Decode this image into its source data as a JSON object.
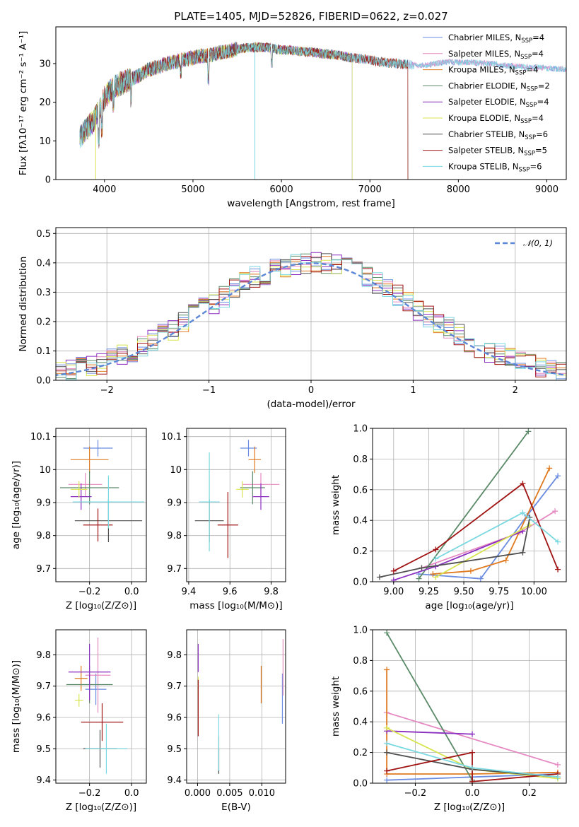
{
  "colors": [
    "#6b8ce0",
    "#e58ac2",
    "#e07a20",
    "#5a8a68",
    "#8b2fc0",
    "#d8e450",
    "#505050",
    "#a01414",
    "#7ad8e0"
  ],
  "chart_data": [
    {
      "id": "spectrum",
      "type": "line",
      "title": "PLATE=1405, MJD=52826, FIBERID=0622, z=0.027",
      "xlabel": "wavelength [Angstrom, rest frame]",
      "ylabel": "Flux [fλ10⁻¹⁷ erg cm⁻² s⁻¹ A⁻¹]",
      "xlim": [
        3450,
        9220
      ],
      "ylim": [
        0,
        39.5
      ],
      "xticks": [
        4000,
        5000,
        6000,
        7000,
        8000,
        9000
      ],
      "yticks": [
        0,
        10,
        20,
        30
      ],
      "grid": false,
      "legend": "top-right",
      "continuum": [
        [
          3720,
          11
        ],
        [
          3800,
          13
        ],
        [
          3900,
          16
        ],
        [
          4000,
          21
        ],
        [
          4100,
          24
        ],
        [
          4200,
          25
        ],
        [
          4300,
          26
        ],
        [
          4400,
          27
        ],
        [
          4500,
          28.5
        ],
        [
          4600,
          29
        ],
        [
          4700,
          30
        ],
        [
          4800,
          30.5
        ],
        [
          4900,
          31
        ],
        [
          5000,
          31.5
        ],
        [
          5100,
          32
        ],
        [
          5200,
          32.2
        ],
        [
          5300,
          32.8
        ],
        [
          5400,
          33.2
        ],
        [
          5500,
          33.8
        ],
        [
          5600,
          34
        ],
        [
          5700,
          34.2
        ],
        [
          5800,
          34.3
        ],
        [
          5900,
          34
        ],
        [
          6000,
          33.5
        ],
        [
          6100,
          33.5
        ],
        [
          6200,
          33.2
        ],
        [
          6300,
          33
        ],
        [
          6400,
          32.8
        ],
        [
          6500,
          32.5
        ],
        [
          6600,
          32.3
        ],
        [
          6700,
          32
        ],
        [
          6800,
          31.5
        ],
        [
          6900,
          31.2
        ],
        [
          7000,
          31
        ],
        [
          7100,
          30.5
        ],
        [
          7200,
          30.2
        ],
        [
          7300,
          30
        ],
        [
          7400,
          29.8
        ],
        [
          7500,
          29.6
        ],
        [
          7600,
          29.5
        ],
        [
          7700,
          29.8
        ],
        [
          7800,
          30.2
        ],
        [
          7900,
          30.4
        ],
        [
          8000,
          30.3
        ],
        [
          8100,
          30.4
        ],
        [
          8200,
          30.2
        ],
        [
          8300,
          30
        ],
        [
          8400,
          29.9
        ],
        [
          8500,
          29.5
        ],
        [
          8600,
          29.4
        ],
        [
          8700,
          29.2
        ],
        [
          8800,
          29
        ],
        [
          8900,
          29
        ],
        [
          9000,
          28.8
        ],
        [
          9100,
          28.6
        ],
        [
          9220,
          28.6
        ]
      ],
      "series": [
        {
          "name": "Chabrier MILES, N",
          "sub": "SSP",
          "suffix": "=4",
          "end": 9220
        },
        {
          "name": "Salpeter MILES, N",
          "sub": "SSP",
          "suffix": "=4",
          "end": 9220
        },
        {
          "name": "Kroupa MILES, N",
          "sub": "SSP",
          "suffix": "=4",
          "end": 7430
        },
        {
          "name": "Chabrier ELODIE, N",
          "sub": "SSP",
          "suffix": "=2",
          "end": 6800
        },
        {
          "name": "Salpeter ELODIE, N",
          "sub": "SSP",
          "suffix": "=4",
          "end": 6800
        },
        {
          "name": "Kroupa ELODIE, N",
          "sub": "SSP",
          "suffix": "=4",
          "end": 6800
        },
        {
          "name": "Chabrier STELIB, N",
          "sub": "SSP",
          "suffix": "=6",
          "end": 7430
        },
        {
          "name": "Salpeter STELIB, N",
          "sub": "SSP",
          "suffix": "=5",
          "end": 7430
        },
        {
          "name": "Kroupa STELIB, N",
          "sub": "SSP",
          "suffix": "=6",
          "end": 9220
        }
      ]
    },
    {
      "id": "residuals",
      "type": "histogram",
      "xlabel": "(data-model)/error",
      "ylabel": "Normed distribution",
      "xlim": [
        -2.5,
        2.5
      ],
      "ylim": [
        0,
        0.52
      ],
      "xticks": [
        -2,
        -1,
        0,
        1,
        2
      ],
      "xticklabels": [
        "−2",
        "−1",
        "0",
        "1",
        "2"
      ],
      "yticks": [
        0.0,
        0.1,
        0.2,
        0.3,
        0.4,
        0.5
      ],
      "yticklabels": [
        "0.0",
        "0.1",
        "0.2",
        "0.3",
        "0.4",
        "0.5"
      ],
      "grid": true,
      "legend": "top-right",
      "reference": {
        "name": "𝒩(0, 1)",
        "color": "#5b87d6"
      }
    },
    {
      "id": "age-vs-z",
      "type": "errorbar",
      "xlabel": "Z [log₁₀(Z/Z⊙)]",
      "ylabel": "age  [log₁₀(age/yr)]",
      "xlim": [
        -0.36,
        0.07
      ],
      "ylim": [
        9.66,
        10.125
      ],
      "xticks": [
        -0.2,
        0.0
      ],
      "xticklabels": [
        "−0.2",
        "0.0"
      ],
      "yticks": [
        9.7,
        9.8,
        9.9,
        10.0,
        10.1
      ],
      "grid": true,
      "points": [
        {
          "x": -0.16,
          "xerr": 0.07,
          "y": 10.065,
          "yerr": 0.025
        },
        {
          "x": -0.22,
          "xerr": 0.08,
          "y": 9.955,
          "yerr": 0.035
        },
        {
          "x": -0.2,
          "xerr": 0.09,
          "y": 10.03,
          "yerr": 0.04
        },
        {
          "x": -0.2,
          "xerr": 0.14,
          "y": 9.945,
          "yerr": 0.05
        },
        {
          "x": -0.24,
          "xerr": 0.05,
          "y": 9.918,
          "yerr": 0.04
        },
        {
          "x": -0.25,
          "xerr": 0.04,
          "y": 9.94,
          "yerr": 0.025
        },
        {
          "x": -0.11,
          "xerr": 0.16,
          "y": 9.845,
          "yerr": 0.065
        },
        {
          "x": -0.16,
          "xerr": 0.07,
          "y": 9.832,
          "yerr": 0.05
        },
        {
          "x": -0.11,
          "xerr": 0.17,
          "y": 9.902,
          "yerr": 0.08
        }
      ]
    },
    {
      "id": "age-vs-mass",
      "type": "errorbar",
      "xlabel": "mass [log₁₀(M/M⊙)]",
      "ylabel": "",
      "xlim": [
        9.39,
        9.87
      ],
      "ylim": [
        9.66,
        10.125
      ],
      "xticks": [
        9.4,
        9.6,
        9.8
      ],
      "yticks": [
        9.7,
        9.8,
        9.9,
        10.0,
        10.1
      ],
      "grid": true,
      "points": [
        {
          "x": 9.69,
          "xerr": 0.04,
          "y": 10.065,
          "yerr": 0.025
        },
        {
          "x": 9.75,
          "xerr": 0.09,
          "y": 9.955,
          "yerr": 0.035
        },
        {
          "x": 9.72,
          "xerr": 0.03,
          "y": 10.03,
          "yerr": 0.04
        },
        {
          "x": 9.71,
          "xerr": 0.06,
          "y": 9.945,
          "yerr": 0.05
        },
        {
          "x": 9.75,
          "xerr": 0.04,
          "y": 9.918,
          "yerr": 0.04
        },
        {
          "x": 9.66,
          "xerr": 0.03,
          "y": 9.94,
          "yerr": 0.025
        },
        {
          "x": 9.5,
          "xerr": 0.07,
          "y": 9.845,
          "yerr": 0.065
        },
        {
          "x": 9.59,
          "xerr": 0.05,
          "y": 9.832,
          "yerr": 0.1
        },
        {
          "x": 9.5,
          "xerr": 0.05,
          "y": 9.902,
          "yerr": 0.15
        }
      ]
    },
    {
      "id": "weight-vs-age",
      "type": "line",
      "xlabel": "age  [log₁₀(age/yr)]",
      "ylabel": "mass weight",
      "xlim": [
        8.85,
        10.23
      ],
      "ylim": [
        0,
        1.0
      ],
      "xticks": [
        9.0,
        9.25,
        9.5,
        9.75,
        10.0
      ],
      "xticklabels": [
        "9.00",
        "9.25",
        "9.50",
        "9.75",
        "10.00"
      ],
      "yticks": [
        0.0,
        0.2,
        0.4,
        0.6,
        0.8,
        1.0
      ],
      "yticklabels": [
        "0.0",
        "0.2",
        "0.4",
        "0.6",
        "0.8",
        "1.0"
      ],
      "grid": true,
      "series": [
        [
          [
            9.18,
            0.05
          ],
          [
            9.62,
            0.02
          ],
          [
            9.95,
            0.43
          ],
          [
            10.17,
            0.69
          ]
        ],
        [
          [
            9.2,
            0.09
          ],
          [
            9.9,
            0.32
          ],
          [
            10.15,
            0.46
          ]
        ],
        [
          [
            9.28,
            0.05
          ],
          [
            9.55,
            0.07
          ],
          [
            9.8,
            0.14
          ],
          [
            10.11,
            0.74
          ]
        ],
        [
          [
            9.18,
            0.02
          ],
          [
            9.96,
            0.98
          ]
        ],
        [
          [
            9.0,
            0.01
          ],
          [
            9.3,
            0.1
          ],
          [
            9.92,
            0.33
          ]
        ],
        [
          [
            9.3,
            0.03
          ],
          [
            9.97,
            0.37
          ]
        ],
        [
          [
            8.9,
            0.03
          ],
          [
            9.2,
            0.09
          ],
          [
            9.92,
            0.19
          ],
          [
            9.97,
            0.42
          ]
        ],
        [
          [
            9.0,
            0.07
          ],
          [
            9.3,
            0.21
          ],
          [
            9.92,
            0.64
          ],
          [
            10.17,
            0.08
          ]
        ],
        [
          [
            9.3,
            0.15
          ],
          [
            9.92,
            0.45
          ],
          [
            10.17,
            0.26
          ]
        ]
      ]
    },
    {
      "id": "mass-vs-z",
      "type": "errorbar",
      "xlabel": "Z [log₁₀(Z/Z⊙)]",
      "ylabel": "mass [log₁₀(M/M⊙)]",
      "xlim": [
        -0.36,
        0.07
      ],
      "ylim": [
        9.39,
        9.88
      ],
      "xticks": [
        -0.2,
        0.0
      ],
      "xticklabels": [
        "−0.2",
        "0.0"
      ],
      "yticks": [
        9.4,
        9.5,
        9.6,
        9.7,
        9.8
      ],
      "grid": true,
      "points": [
        {
          "x": -0.17,
          "xerr": 0.05,
          "y": 9.69,
          "yerr": 0.05
        },
        {
          "x": -0.16,
          "xerr": 0.06,
          "y": 9.735,
          "yerr": 0.12
        },
        {
          "x": -0.24,
          "xerr": 0.03,
          "y": 9.725,
          "yerr": 0.04
        },
        {
          "x": -0.2,
          "xerr": 0.11,
          "y": 9.705,
          "yerr": 0.06
        },
        {
          "x": -0.2,
          "xerr": 0.1,
          "y": 9.745,
          "yerr": 0.09
        },
        {
          "x": -0.25,
          "xerr": 0.02,
          "y": 9.655,
          "yerr": 0.02
        },
        {
          "x": -0.15,
          "xerr": 0.08,
          "y": 9.5,
          "yerr": 0.06
        },
        {
          "x": -0.14,
          "xerr": 0.1,
          "y": 9.585,
          "yerr": 0.06
        },
        {
          "x": -0.12,
          "xerr": 0.1,
          "y": 9.5,
          "yerr": 0.08
        }
      ]
    },
    {
      "id": "mass-vs-ebv",
      "type": "errorbar",
      "xlabel": "E(B-V)",
      "ylabel": "",
      "xlim": [
        -0.0017,
        0.0137
      ],
      "ylim": [
        9.39,
        9.88
      ],
      "xticks": [
        0.0,
        0.005,
        0.01
      ],
      "xticklabels": [
        "0.000",
        "0.005",
        "0.010"
      ],
      "yticks": [
        9.4,
        9.5,
        9.6,
        9.7,
        9.8
      ],
      "grid": true,
      "points": [
        {
          "x": 0.0132,
          "xerr": 0,
          "y": 9.66,
          "yerr": 0.08
        },
        {
          "x": 0.0133,
          "xerr": 0,
          "y": 9.76,
          "yerr": 0.09
        },
        {
          "x": 0.0099,
          "xerr": 0,
          "y": 9.705,
          "yerr": 0.06
        },
        {
          "x": 0.0033,
          "xerr": 0,
          "y": 9.48,
          "yerr": 0.06
        },
        {
          "x": 0.0001,
          "xerr": 0,
          "y": 9.79,
          "yerr": 0.045
        },
        {
          "x": 0.0001,
          "xerr": 0,
          "y": 9.7,
          "yerr": 0.03
        },
        {
          "x": 0.0033,
          "xerr": 0,
          "y": 9.46,
          "yerr": 0.04
        },
        {
          "x": 0.0001,
          "xerr": 0,
          "y": 9.63,
          "yerr": 0.09
        },
        {
          "x": 0.0033,
          "xerr": 0,
          "y": 9.52,
          "yerr": 0.09
        }
      ]
    },
    {
      "id": "weight-vs-z",
      "type": "line",
      "xlabel": "Z [log₁₀(Z/Z⊙)]",
      "ylabel": "mass weight",
      "xlim": [
        -0.35,
        0.33
      ],
      "ylim": [
        0,
        1.0
      ],
      "xticks": [
        -0.2,
        0.0,
        0.2
      ],
      "xticklabels": [
        "−0.2",
        "0.0",
        "0.2"
      ],
      "yticks": [
        0.0,
        0.2,
        0.4,
        0.6,
        0.8,
        1.0
      ],
      "yticklabels": [
        "0.0",
        "0.2",
        "0.4",
        "0.6",
        "0.8",
        "1.0"
      ],
      "grid": true,
      "series": [
        [
          [
            -0.3,
            0.02
          ],
          [
            0.0,
            0.04
          ],
          [
            0.3,
            0.06
          ]
        ],
        [
          [
            -0.3,
            0.46
          ],
          [
            0.3,
            0.12
          ]
        ],
        [
          [
            -0.3,
            0.74
          ],
          [
            -0.3,
            0.06
          ],
          [
            0.0,
            0.06
          ],
          [
            0.3,
            0.07
          ]
        ],
        [
          [
            -0.3,
            0.98
          ],
          [
            0.0,
            0.02
          ]
        ],
        [
          [
            -0.3,
            0.34
          ],
          [
            0.0,
            0.32
          ]
        ],
        [
          [
            -0.3,
            0.36
          ],
          [
            0.0,
            0.09
          ],
          [
            0.3,
            0.03
          ]
        ],
        [
          [
            -0.3,
            0.2
          ],
          [
            0.0,
            0.09
          ],
          [
            0.3,
            0.04
          ]
        ],
        [
          [
            -0.3,
            0.08
          ],
          [
            0.0,
            0.2
          ],
          [
            0.0,
            0.01
          ],
          [
            0.3,
            0.06
          ]
        ],
        [
          [
            -0.3,
            0.26
          ],
          [
            0.0,
            0.1
          ],
          [
            0.3,
            0.04
          ]
        ]
      ]
    }
  ]
}
